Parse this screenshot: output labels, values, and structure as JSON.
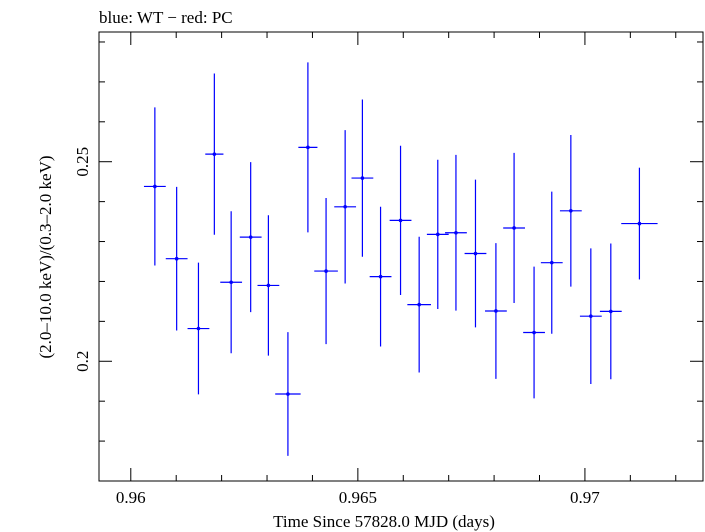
{
  "chart_data": {
    "type": "scatter",
    "title": "blue: WT − red: PC",
    "xlabel": "Time Since 57828.0 MJD (days)",
    "ylabel": "(2.0–10.0 keV)/(0.3–2.0 keV)",
    "xlim": [
      0.9593,
      0.9726
    ],
    "ylim": [
      0.17,
      0.2825
    ],
    "x_major_ticks": [
      0.96,
      0.965,
      0.97
    ],
    "x_tick_labels": [
      "0.96",
      "0.965",
      "0.97"
    ],
    "x_minor_step": 0.001,
    "y_major_ticks": [
      0.2,
      0.25
    ],
    "y_tick_labels": [
      "0.2",
      "0.25"
    ],
    "y_minor_step": 0.01,
    "grid": false,
    "series": [
      {
        "color": "#0000ff",
        "points": [
          {
            "x": 0.96053,
            "xerr": 0.00024,
            "y": 0.2438,
            "yerr": 0.0198
          },
          {
            "x": 0.96101,
            "xerr": 0.00024,
            "y": 0.2257,
            "yerr": 0.018
          },
          {
            "x": 0.96149,
            "xerr": 0.00024,
            "y": 0.2082,
            "yerr": 0.0165
          },
          {
            "x": 0.96184,
            "xerr": 0.0002,
            "y": 0.2519,
            "yerr": 0.0202
          },
          {
            "x": 0.96221,
            "xerr": 0.00024,
            "y": 0.2198,
            "yerr": 0.0178
          },
          {
            "x": 0.96264,
            "xerr": 0.00024,
            "y": 0.2311,
            "yerr": 0.0188
          },
          {
            "x": 0.96303,
            "xerr": 0.00024,
            "y": 0.219,
            "yerr": 0.0176
          },
          {
            "x": 0.96346,
            "xerr": 0.00028,
            "y": 0.1918,
            "yerr": 0.0155
          },
          {
            "x": 0.9639,
            "xerr": 0.00021,
            "y": 0.2536,
            "yerr": 0.0213
          },
          {
            "x": 0.9643,
            "xerr": 0.00026,
            "y": 0.2226,
            "yerr": 0.0183
          },
          {
            "x": 0.96472,
            "xerr": 0.00024,
            "y": 0.2387,
            "yerr": 0.0192
          },
          {
            "x": 0.9651,
            "xerr": 0.00024,
            "y": 0.2459,
            "yerr": 0.0197
          },
          {
            "x": 0.9655,
            "xerr": 0.00024,
            "y": 0.2212,
            "yerr": 0.0175
          },
          {
            "x": 0.96594,
            "xerr": 0.00024,
            "y": 0.2353,
            "yerr": 0.0187
          },
          {
            "x": 0.96635,
            "xerr": 0.00026,
            "y": 0.2142,
            "yerr": 0.017
          },
          {
            "x": 0.96676,
            "xerr": 0.00024,
            "y": 0.2318,
            "yerr": 0.0187
          },
          {
            "x": 0.96716,
            "xerr": 0.00024,
            "y": 0.2322,
            "yerr": 0.0195
          },
          {
            "x": 0.96759,
            "xerr": 0.00024,
            "y": 0.227,
            "yerr": 0.0185
          },
          {
            "x": 0.96804,
            "xerr": 0.00024,
            "y": 0.2126,
            "yerr": 0.017
          },
          {
            "x": 0.96844,
            "xerr": 0.00024,
            "y": 0.2334,
            "yerr": 0.0188
          },
          {
            "x": 0.96888,
            "xerr": 0.00024,
            "y": 0.2072,
            "yerr": 0.0165
          },
          {
            "x": 0.96927,
            "xerr": 0.00024,
            "y": 0.2247,
            "yerr": 0.0178
          },
          {
            "x": 0.96969,
            "xerr": 0.00024,
            "y": 0.2377,
            "yerr": 0.019
          },
          {
            "x": 0.97013,
            "xerr": 0.00024,
            "y": 0.2113,
            "yerr": 0.017
          },
          {
            "x": 0.97057,
            "xerr": 0.00024,
            "y": 0.2125,
            "yerr": 0.017
          },
          {
            "x": 0.9712,
            "xerr": 0.0004,
            "y": 0.2345,
            "yerr": 0.014
          }
        ]
      }
    ]
  }
}
